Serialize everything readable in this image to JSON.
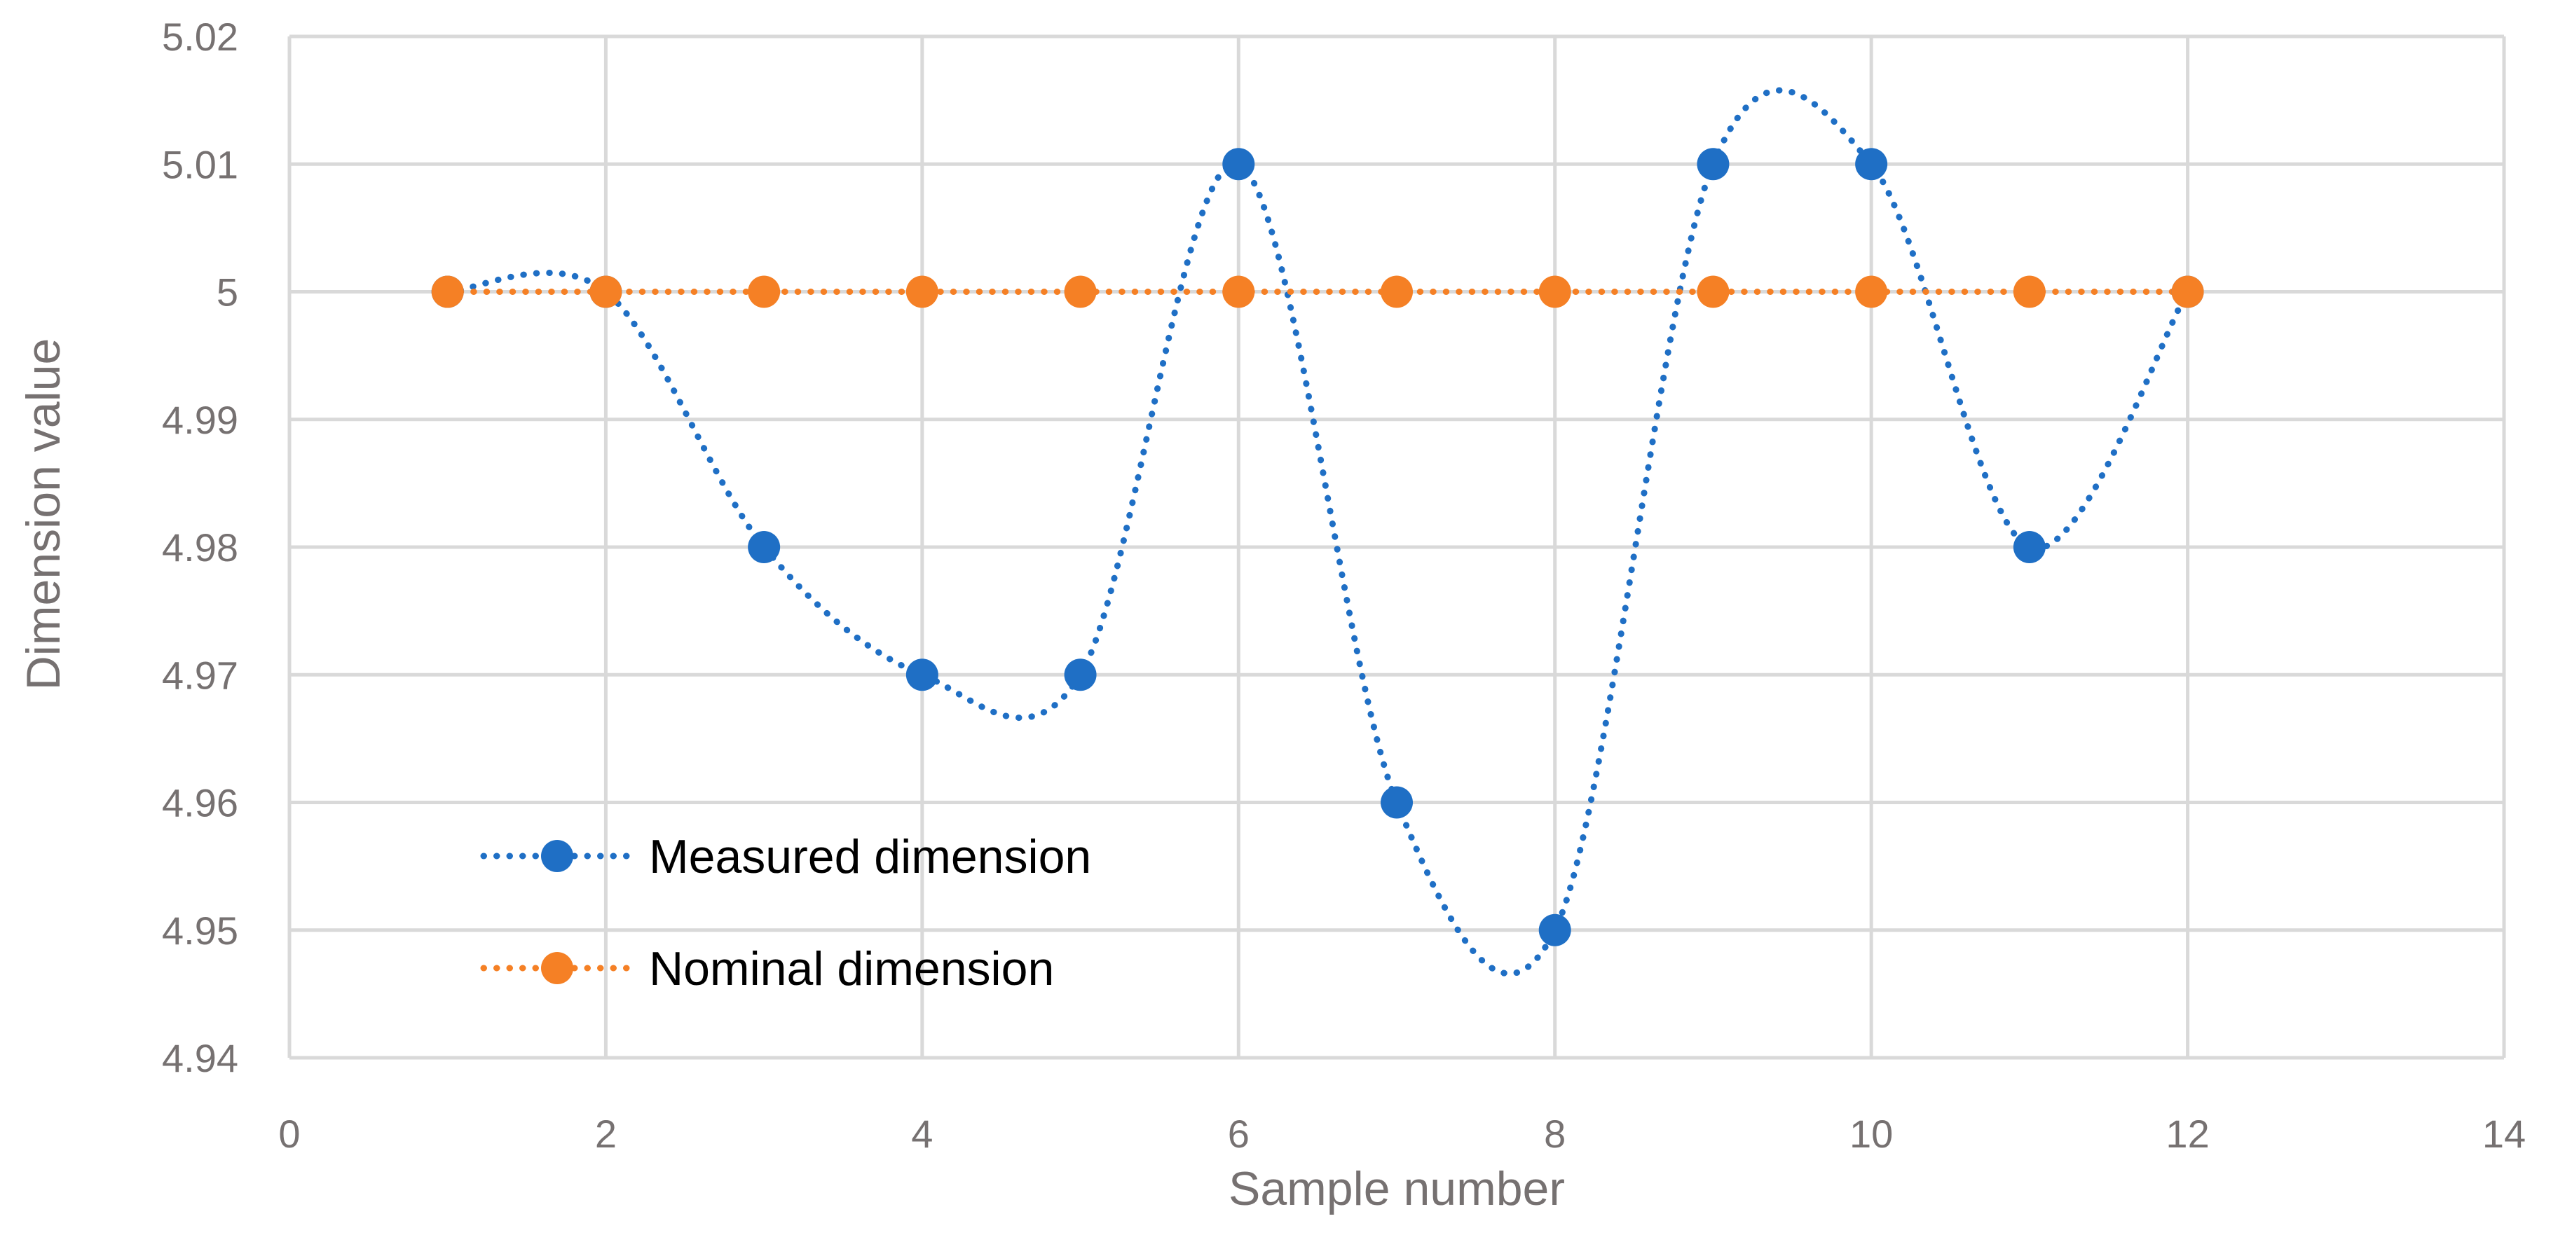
{
  "chart_data": {
    "type": "line",
    "title": "",
    "xlabel": "Sample number",
    "ylabel": "Dimension value",
    "xlim": [
      0,
      14
    ],
    "ylim": [
      4.94,
      5.02
    ],
    "x_ticks": [
      "0",
      "2",
      "4",
      "6",
      "8",
      "10",
      "12",
      "14"
    ],
    "y_ticks": [
      "4.94",
      "4.95",
      "4.96",
      "4.97",
      "4.98",
      "4.99",
      "5",
      "5.01",
      "5.02"
    ],
    "grid": true,
    "legend_position": "lower-left",
    "x": [
      1,
      2,
      3,
      4,
      5,
      6,
      7,
      8,
      9,
      10,
      11,
      12
    ],
    "series": [
      {
        "name": "Measured dimension",
        "color": "#1f6fc5",
        "line_style": "dotted",
        "smooth": true,
        "values": [
          5.0,
          5.0,
          4.98,
          4.97,
          4.97,
          5.01,
          4.96,
          4.95,
          5.01,
          5.01,
          4.98,
          5.0
        ]
      },
      {
        "name": "Nominal dimension",
        "color": "#f58025",
        "line_style": "dotted",
        "smooth": false,
        "values": [
          5.0,
          5.0,
          5.0,
          5.0,
          5.0,
          5.0,
          5.0,
          5.0,
          5.0,
          5.0,
          5.0,
          5.0
        ]
      }
    ]
  }
}
